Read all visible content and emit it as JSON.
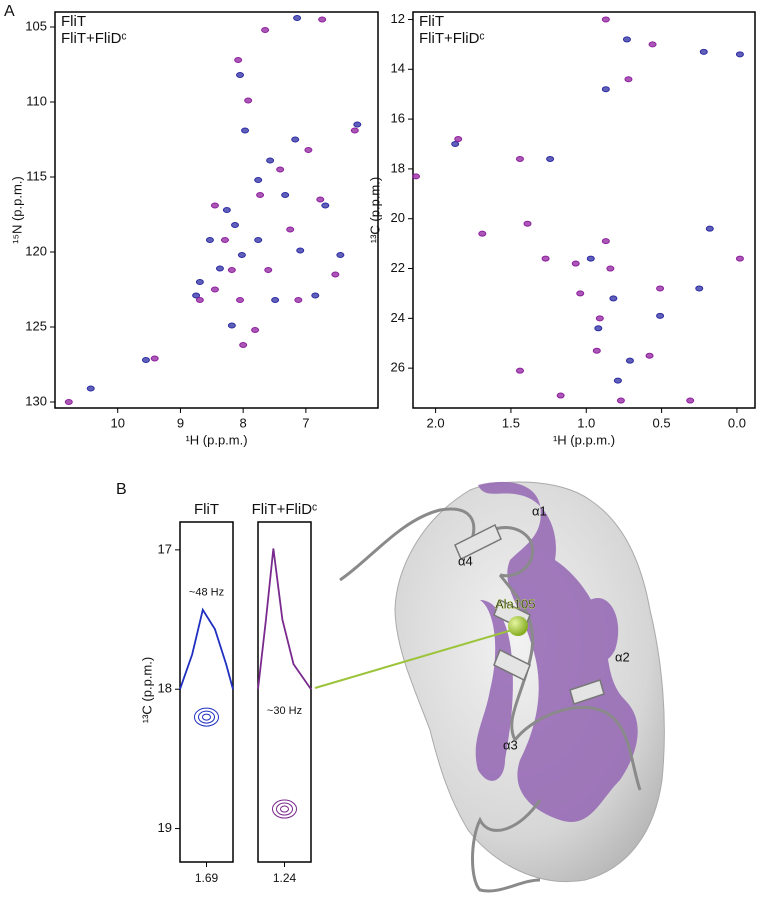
{
  "panel_labels": [
    "A",
    "B"
  ],
  "structure": {
    "labels": [
      "α1",
      "α4",
      "Ala105",
      "α2",
      "α3"
    ]
  },
  "chart_data": [
    {
      "type": "scatter",
      "xlabel": "¹H (p.p.m.)",
      "ylabel": "¹⁵N (p.p.m.)",
      "legend": "upper left",
      "xlim": [
        11.0,
        5.85
      ],
      "ylim": [
        104.0,
        130.4
      ],
      "xticks": [
        10,
        9,
        8,
        7
      ],
      "yticks": [
        105,
        110,
        115,
        120,
        125,
        130
      ],
      "series": [
        {
          "name": "FliT",
          "color": "#2b2ba3",
          "x": [
            10.43,
            9.55,
            8.75,
            8.69,
            8.37,
            8.26,
            8.13,
            8.02,
            7.97,
            7.76,
            7.57,
            7.49,
            7.33,
            7.17,
            7.09,
            6.85,
            6.69,
            6.45,
            6.18,
            8.05,
            7.14,
            8.18,
            8.53,
            7.76
          ],
          "y": [
            129.1,
            127.2,
            122.9,
            122.0,
            121.1,
            117.2,
            118.2,
            120.2,
            111.9,
            115.2,
            113.9,
            123.2,
            116.2,
            112.5,
            119.9,
            122.9,
            116.9,
            120.2,
            111.5,
            108.2,
            104.4,
            124.9,
            119.2,
            119.2
          ]
        },
        {
          "name": "FliT+FliDᶜ",
          "color": "#8e1f9e",
          "x": [
            10.78,
            9.41,
            8.69,
            8.45,
            8.29,
            8.18,
            8.05,
            8.0,
            7.92,
            8.08,
            7.73,
            7.6,
            7.41,
            7.25,
            7.12,
            6.96,
            6.77,
            6.53,
            6.22,
            6.74,
            7.65,
            8.45,
            7.81
          ],
          "y": [
            130.0,
            127.1,
            123.2,
            122.5,
            119.2,
            121.2,
            123.2,
            126.2,
            109.9,
            107.2,
            116.2,
            121.2,
            114.5,
            118.5,
            123.2,
            113.2,
            116.5,
            121.5,
            111.9,
            104.5,
            105.2,
            116.9,
            125.2
          ]
        }
      ]
    },
    {
      "type": "scatter",
      "xlabel": "¹H (p.p.m.)",
      "ylabel": "¹³C (p.p.m.)",
      "legend": "upper left",
      "xlim": [
        2.15,
        -0.12
      ],
      "ylim": [
        11.7,
        27.6
      ],
      "xticks": [
        {
          "value": 2,
          "label": "2.0"
        },
        {
          "value": 1.5,
          "label": "1.5"
        },
        {
          "value": 1,
          "label": "1.0"
        },
        {
          "value": 0.5,
          "label": "0.5"
        },
        {
          "value": 0,
          "label": "0.0"
        }
      ],
      "yticks": [
        12,
        14,
        16,
        18,
        20,
        22,
        24,
        26
      ],
      "series": [
        {
          "name": "FliT",
          "color": "#2b2ba3",
          "x": [
            0.87,
            0.73,
            0.22,
            -0.02,
            0.92,
            0.82,
            0.71,
            0.97,
            0.25,
            0.51,
            1.87,
            1.24,
            0.18,
            0.79
          ],
          "y": [
            14.8,
            12.8,
            13.3,
            13.4,
            24.4,
            23.2,
            25.7,
            21.6,
            22.8,
            23.9,
            17.0,
            17.6,
            20.4,
            26.5
          ]
        },
        {
          "name": "FliT+FliDᶜ",
          "color": "#8e1f9e",
          "x": [
            1.85,
            1.44,
            1.39,
            1.27,
            1.07,
            1.04,
            0.91,
            0.84,
            0.93,
            0.77,
            1.44,
            1.17,
            0.58,
            0.87,
            0.56,
            0.72,
            -0.02,
            0.31,
            1.69,
            2.13,
            0.87,
            0.51
          ],
          "y": [
            16.8,
            17.6,
            20.2,
            21.6,
            21.8,
            23.0,
            24.0,
            22.0,
            25.3,
            27.3,
            26.1,
            27.1,
            25.5,
            12.0,
            13.0,
            14.4,
            21.6,
            27.3,
            20.6,
            18.3,
            20.9,
            22.8
          ]
        }
      ]
    },
    {
      "type": "trace",
      "ylabel": "¹³C (p.p.m.)",
      "ylim": [
        16.8,
        19.24
      ],
      "yticks": [
        17,
        18,
        19
      ],
      "xlim": [
        0,
        1
      ],
      "panels": [
        {
          "name": "FliT",
          "color": "#1f2fc0",
          "xtick": 1.69,
          "annotation": "~48 Hz",
          "peak_y": 18.2,
          "x": [
            0,
            0.23,
            0.43,
            0.66,
            0.87,
            1
          ],
          "y": [
            18.0,
            17.75,
            17.43,
            17.57,
            17.82,
            18.0
          ]
        },
        {
          "name": "FliT+FliDᶜ",
          "color": "#7a2a8e",
          "xtick": 1.24,
          "annotation": "~30 Hz",
          "peak_y": 18.86,
          "x": [
            0,
            0.15,
            0.29,
            0.46,
            0.67,
            1
          ],
          "y": [
            18.0,
            17.5,
            16.99,
            17.5,
            17.82,
            18.0
          ]
        }
      ]
    }
  ]
}
